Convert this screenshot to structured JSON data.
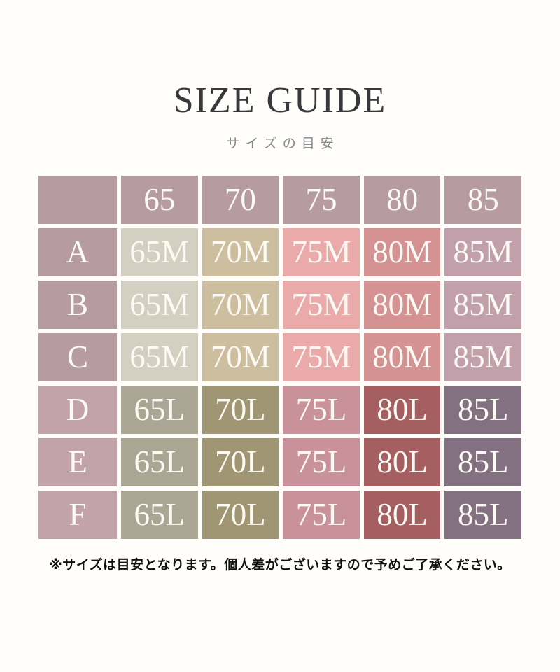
{
  "chart_data": {
    "type": "table",
    "title": "SIZE GUIDE",
    "subtitle": "サイズの目安",
    "columns": [
      "",
      "65",
      "70",
      "75",
      "80",
      "85"
    ],
    "rows": [
      [
        "A",
        "65M",
        "70M",
        "75M",
        "80M",
        "85M"
      ],
      [
        "B",
        "65M",
        "70M",
        "75M",
        "80M",
        "85M"
      ],
      [
        "C",
        "65M",
        "70M",
        "75M",
        "80M",
        "85M"
      ],
      [
        "D",
        "65L",
        "70L",
        "75L",
        "80L",
        "85L"
      ],
      [
        "E",
        "65L",
        "70L",
        "75L",
        "80L",
        "85L"
      ],
      [
        "F",
        "65L",
        "70L",
        "75L",
        "80L",
        "85L"
      ]
    ],
    "note": "※サイズは目安となります。個人差がございますので予めご了承ください。",
    "legend_position": "none",
    "grid": false
  },
  "colors": {
    "title_text": "#39393d",
    "subtitle_text": "#85858a",
    "note_text": "#111111",
    "cell_text": "#fcfaf4",
    "header_bg": "#b69ca1",
    "row_label_bg_upper": "#b69ca1",
    "row_label_bg_lower": "#c2a3aa",
    "m_cells": [
      "#d4d0c1",
      "#ccbe9e",
      "#e9aaa9",
      "#d49292",
      "#c2a0ab"
    ],
    "l_cells": [
      "#aba593",
      "#a09673",
      "#c9929a",
      "#a55f60",
      "#837080"
    ]
  }
}
